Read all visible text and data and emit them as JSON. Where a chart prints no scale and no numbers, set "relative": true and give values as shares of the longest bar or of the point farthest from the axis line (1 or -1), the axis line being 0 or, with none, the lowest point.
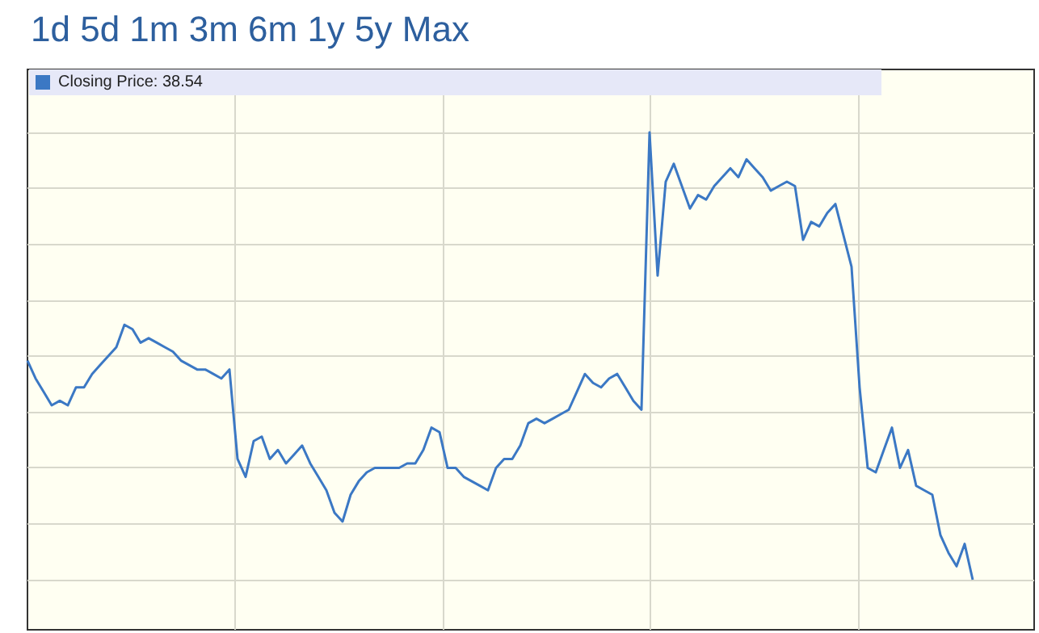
{
  "chart_data": {
    "type": "line",
    "title": "1d 5d 1m 3m 6m 1y 5y Max",
    "relative": true,
    "grid": true,
    "legend": "top left",
    "marker": "none",
    "line_style": "solid",
    "categories": [
      null,
      null,
      null,
      null,
      null,
      null,
      null,
      null,
      null,
      null,
      null,
      null,
      null,
      null,
      null,
      null,
      null,
      null,
      null,
      null,
      null,
      null,
      null,
      null,
      null,
      null,
      null,
      null,
      null,
      null,
      null,
      null,
      null,
      null,
      null,
      null,
      null,
      null,
      null,
      null,
      null,
      null,
      null,
      null,
      null,
      null,
      null,
      null,
      null,
      null,
      null,
      null,
      null,
      null,
      null,
      null,
      null,
      null,
      null,
      null,
      null,
      null,
      null,
      null,
      null,
      null,
      null,
      null,
      null,
      null,
      null,
      null,
      null,
      null,
      null,
      null,
      null,
      null,
      null,
      null,
      null,
      null,
      null,
      null,
      null,
      null,
      null,
      null,
      null,
      null,
      null,
      null,
      null,
      null,
      null,
      null,
      null,
      null,
      null,
      null,
      null,
      null,
      null,
      null,
      null,
      null,
      null,
      null,
      null,
      null,
      null,
      null,
      null,
      null,
      null,
      null,
      null,
      null
    ],
    "series": [
      {
        "name": "Closing Price: 38.54",
        "color": "#3b78c4",
        "values": [
          0.49,
          0.45,
          0.42,
          0.39,
          0.4,
          0.39,
          0.43,
          0.43,
          0.46,
          0.48,
          0.5,
          0.52,
          0.57,
          0.56,
          0.53,
          0.54,
          0.53,
          0.52,
          0.51,
          0.49,
          0.48,
          0.47,
          0.47,
          0.46,
          0.45,
          0.47,
          0.27,
          0.23,
          0.31,
          0.32,
          0.27,
          0.29,
          0.26,
          0.28,
          0.3,
          0.26,
          0.23,
          0.2,
          0.15,
          0.13,
          0.19,
          0.22,
          0.24,
          0.25,
          0.25,
          0.25,
          0.25,
          0.26,
          0.26,
          0.29,
          0.34,
          0.33,
          0.25,
          0.25,
          0.23,
          0.22,
          0.21,
          0.2,
          0.25,
          0.27,
          0.27,
          0.3,
          0.35,
          0.36,
          0.35,
          0.36,
          0.37,
          0.38,
          0.42,
          0.46,
          0.44,
          0.43,
          0.45,
          0.46,
          0.43,
          0.4,
          0.38,
          1,
          0.68,
          0.89,
          0.93,
          0.88,
          0.83,
          0.86,
          0.85,
          0.88,
          0.9,
          0.92,
          0.9,
          0.94,
          0.92,
          0.9,
          0.87,
          0.88,
          0.89,
          0.88,
          0.76,
          0.8,
          0.79,
          0.82,
          0.84,
          0.77,
          0.7,
          0.43,
          0.25,
          0.24,
          0.29,
          0.34,
          0.25,
          0.29,
          0.21,
          0.2,
          0.19,
          0.1,
          0.06,
          0.03,
          0.08,
          0
        ]
      }
    ]
  }
}
